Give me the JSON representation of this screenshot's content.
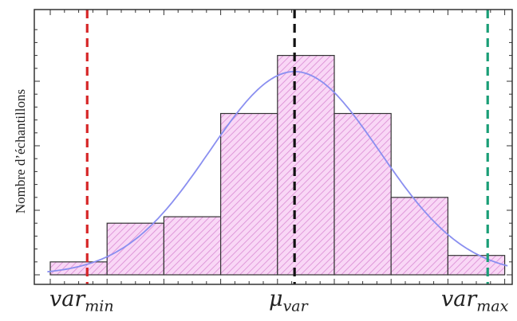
{
  "chart_data": {
    "type": "bar",
    "title": "",
    "xlabel": "",
    "ylabel": "Nombre d’échantillons",
    "bins": [
      {
        "x0": 0.0,
        "x1": 1.0,
        "count": 0.2
      },
      {
        "x0": 1.0,
        "x1": 2.0,
        "count": 0.8
      },
      {
        "x0": 2.0,
        "x1": 3.0,
        "count": 0.9
      },
      {
        "x0": 3.0,
        "x1": 4.0,
        "count": 2.5
      },
      {
        "x0": 4.0,
        "x1": 5.0,
        "count": 3.4
      },
      {
        "x0": 5.0,
        "x1": 6.0,
        "count": 2.5
      },
      {
        "x0": 6.0,
        "x1": 7.0,
        "count": 1.2
      },
      {
        "x0": 7.0,
        "x1": 8.0,
        "count": 0.3
      }
    ],
    "fit": {
      "type": "gaussian",
      "mean": 4.3,
      "sigma": 1.5,
      "peak": 3.15,
      "color": "#8a8ff0"
    },
    "markers": [
      {
        "x": 0.65,
        "color": "#d62728",
        "label": {
          "main": "var",
          "sub": "min"
        }
      },
      {
        "x": 4.3,
        "color": "#111111",
        "label": {
          "main": "μ",
          "sub": "var"
        }
      },
      {
        "x": 7.7,
        "color": "#1a9e77",
        "label": {
          "main": "var",
          "sub": "max"
        }
      }
    ],
    "xlim": [
      -0.05,
      8.1
    ],
    "ylim": [
      0,
      4.2
    ],
    "bar_fill": "#f9d7f6",
    "hatch_color": "#d98ad3",
    "bar_edge": "#333333"
  }
}
